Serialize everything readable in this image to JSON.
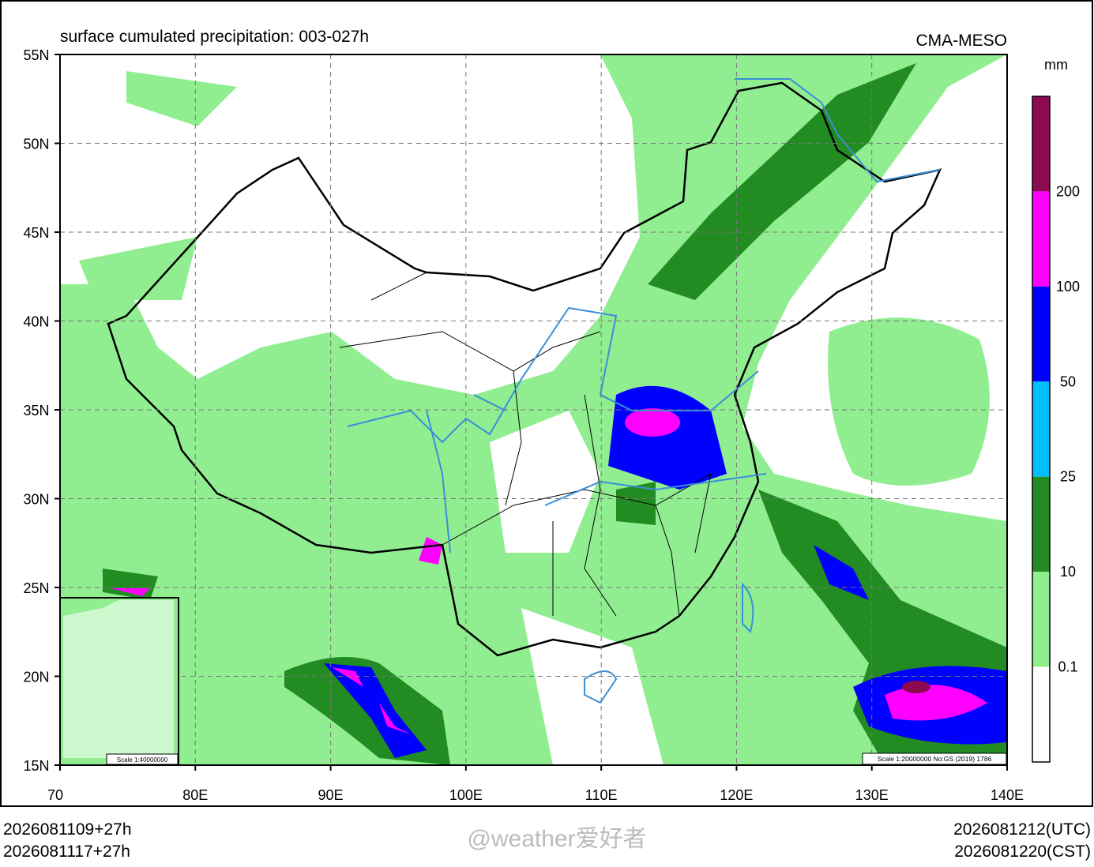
{
  "header": {
    "title": "surface cumulated precipitation: 003-027h",
    "model": "CMA-MESO"
  },
  "map": {
    "lat_labels": [
      "55N",
      "50N",
      "45N",
      "40N",
      "35N",
      "30N",
      "25N",
      "20N",
      "15N"
    ],
    "lon_labels": [
      "70",
      "80E",
      "90E",
      "100E",
      "110E",
      "120E",
      "130E",
      "140E"
    ],
    "scale_main": "Scale 1:20000000 No:GS (2019) 1786",
    "scale_inset": "Scale 1:40000000"
  },
  "legend": {
    "unit": "mm",
    "levels": [
      "200",
      "100",
      "50",
      "25",
      "10",
      "0.1"
    ],
    "colors": [
      "#8b0a50",
      "#ff00ff",
      "#0000ff",
      "#00bfff",
      "#228b22",
      "#90ee90",
      "#ffffff"
    ]
  },
  "footer": {
    "left": [
      "2026081109+27h",
      "2026081117+27h"
    ],
    "right": [
      "2026081212(UTC)",
      "2026081220(CST)"
    ],
    "watermark": "@weather爱好者"
  }
}
